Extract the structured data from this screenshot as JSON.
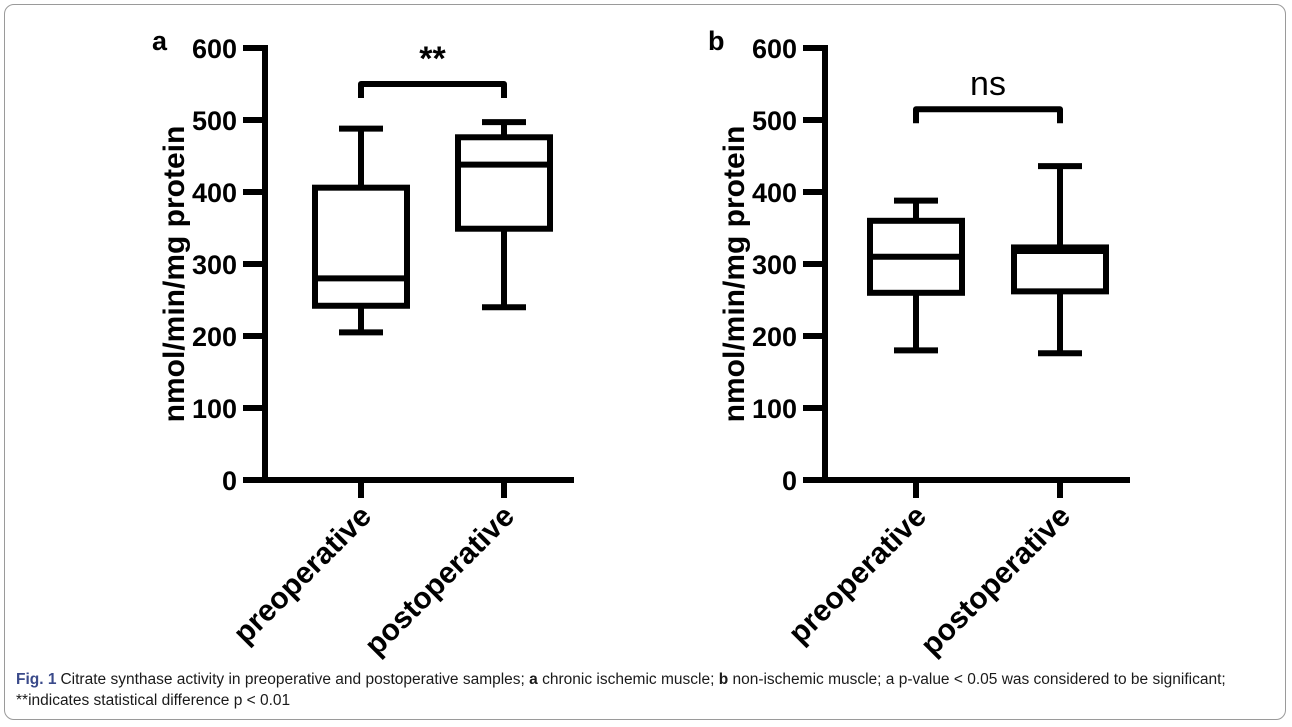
{
  "chart_data": [
    {
      "type": "box",
      "panel_label": "a",
      "ylabel": "nmol/min/mg protein",
      "ylim": [
        0,
        600
      ],
      "yticks": [
        0,
        100,
        200,
        300,
        400,
        500,
        600
      ],
      "categories": [
        "preoperative",
        "postoperative"
      ],
      "boxes": [
        {
          "category": "preoperative",
          "min": 205,
          "q1": 242,
          "median": 280,
          "q3": 406,
          "max": 488
        },
        {
          "category": "postoperative",
          "min": 240,
          "q1": 349,
          "median": 438,
          "q3": 476,
          "max": 497
        }
      ],
      "significance": {
        "label": "**",
        "bold": true,
        "y": 550
      }
    },
    {
      "type": "box",
      "panel_label": "b",
      "ylabel": "nmol/min/mg protein",
      "ylim": [
        0,
        600
      ],
      "yticks": [
        0,
        100,
        200,
        300,
        400,
        500,
        600
      ],
      "categories": [
        "preoperative",
        "postoperative"
      ],
      "boxes": [
        {
          "category": "preoperative",
          "min": 180,
          "q1": 260,
          "median": 310,
          "q3": 360,
          "max": 388
        },
        {
          "category": "postoperative",
          "min": 176,
          "q1": 262,
          "median": 318,
          "q3": 323,
          "max": 436
        }
      ],
      "significance": {
        "label": "ns",
        "bold": false,
        "y": 515
      }
    }
  ],
  "caption": {
    "fig_label": "Fig. 1",
    "text_1": "Citrate synthase activity in preoperative and postoperative samples; ",
    "panel_a": "a",
    "text_2": " chronic ischemic muscle; ",
    "panel_b": "b",
    "text_3": " non-ischemic muscle; a p-value < 0.05 was considered to be significant; **indicates statistical difference p < 0.01"
  }
}
